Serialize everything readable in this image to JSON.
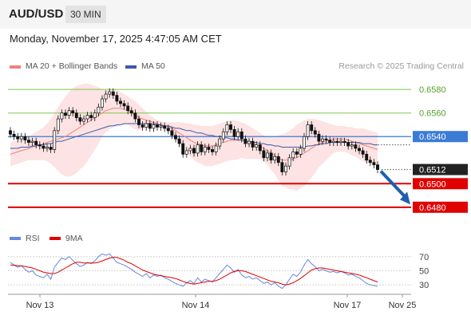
{
  "header": {
    "symbol": "AUD/USD",
    "timeframe": "30 MIN",
    "datetime": "Monday, November 17, 2025 4:47:05 AM CET"
  },
  "colors": {
    "ma20": "#f08080",
    "bollinger_fill": "#fde0e0",
    "ma50": "#3a5ca8",
    "candle": "#111111",
    "resistance": "#7ec850",
    "pivot": "#3a7bd5",
    "support": "#e00000",
    "last": "#222222",
    "rsi": "#6688dd",
    "rsi_ma": "#e00000",
    "arrow": "#1e5fb0"
  },
  "chart_data": [
    {
      "type": "line",
      "panel": "price",
      "legend": [
        {
          "name": "MA 20 + Bollinger Bands",
          "color": "#f08080"
        },
        {
          "name": "MA 50",
          "color": "#3a5ca8"
        }
      ],
      "credit": "Research © 2025 Trading Central",
      "x_ticks": [
        "Nov 13",
        "Nov 14",
        "Nov 17",
        "Nov 25"
      ],
      "y_range": [
        0.6465,
        0.6595
      ],
      "levels": [
        {
          "label": "0.6580",
          "value": 0.658,
          "kind": "resistance"
        },
        {
          "label": "0.6560",
          "value": 0.656,
          "kind": "resistance"
        },
        {
          "label": "0.6540",
          "value": 0.654,
          "kind": "pivot"
        },
        {
          "label": "0.6512",
          "value": 0.6512,
          "kind": "last"
        },
        {
          "label": "0.6500",
          "value": 0.65,
          "kind": "support"
        },
        {
          "label": "0.6480",
          "value": 0.648,
          "kind": "support"
        }
      ],
      "arrow": {
        "from": 0.6512,
        "to": 0.6481
      },
      "close": [
        0.6542,
        0.654,
        0.6538,
        0.654,
        0.6537,
        0.6535,
        0.6536,
        0.6533,
        0.6532,
        0.653,
        0.6531,
        0.6529,
        0.6545,
        0.6555,
        0.656,
        0.6558,
        0.6562,
        0.656,
        0.6556,
        0.6553,
        0.6555,
        0.6558,
        0.6556,
        0.656,
        0.6565,
        0.6572,
        0.6576,
        0.6578,
        0.6575,
        0.657,
        0.6568,
        0.6566,
        0.6562,
        0.656,
        0.6555,
        0.655,
        0.6548,
        0.6551,
        0.6547,
        0.655,
        0.6548,
        0.6549,
        0.6547,
        0.6545,
        0.6541,
        0.6538,
        0.6534,
        0.6525,
        0.6528,
        0.653,
        0.6526,
        0.6533,
        0.6527,
        0.6531,
        0.6529,
        0.6527,
        0.6532,
        0.6538,
        0.6544,
        0.655,
        0.6546,
        0.654,
        0.6544,
        0.6538,
        0.6534,
        0.6536,
        0.6531,
        0.6533,
        0.6528,
        0.6522,
        0.6526,
        0.652,
        0.6523,
        0.6518,
        0.651,
        0.6515,
        0.6522,
        0.6527,
        0.6525,
        0.653,
        0.654,
        0.655,
        0.6545,
        0.6542,
        0.6536,
        0.6538,
        0.6537,
        0.6535,
        0.6536,
        0.6535,
        0.6536,
        0.6535,
        0.6532,
        0.6533,
        0.653,
        0.6528,
        0.6525,
        0.652,
        0.6518,
        0.6516,
        0.6512
      ],
      "ma20": [
        0.6525,
        0.6526,
        0.6527,
        0.6528,
        0.6529,
        0.653,
        0.6531,
        0.6532,
        0.6533,
        0.6534,
        0.6535,
        0.6536,
        0.6537,
        0.6538,
        0.6539,
        0.654,
        0.6542,
        0.6544,
        0.6546,
        0.6548,
        0.655,
        0.6552,
        0.6554,
        0.6556,
        0.6558,
        0.656,
        0.6562,
        0.6563,
        0.6564,
        0.6564,
        0.6564,
        0.6563,
        0.6562,
        0.656,
        0.6558,
        0.6556,
        0.6555,
        0.6554,
        0.6553,
        0.6552,
        0.6551,
        0.655,
        0.6549,
        0.6548,
        0.6547,
        0.6545,
        0.6543,
        0.6541,
        0.6539,
        0.6537,
        0.6535,
        0.6534,
        0.6533,
        0.6532,
        0.6532,
        0.6532,
        0.6533,
        0.6534,
        0.6535,
        0.6536,
        0.6537,
        0.6537,
        0.6537,
        0.6537,
        0.6536,
        0.6535,
        0.6534,
        0.6533,
        0.6532,
        0.653,
        0.6528,
        0.6526,
        0.6524,
        0.6522,
        0.652,
        0.652,
        0.652,
        0.6521,
        0.6522,
        0.6524,
        0.6526,
        0.6528,
        0.653,
        0.6532,
        0.6534,
        0.6535,
        0.6536,
        0.6537,
        0.6538,
        0.6538,
        0.6538,
        0.6538,
        0.6537,
        0.6536,
        0.6535,
        0.6534,
        0.6533,
        0.6532,
        0.6531,
        0.653,
        0.6529
      ],
      "bb_upper": [
        0.6535,
        0.6536,
        0.6537,
        0.6538,
        0.6539,
        0.654,
        0.6542,
        0.6544,
        0.6546,
        0.6548,
        0.6551,
        0.6555,
        0.656,
        0.6565,
        0.657,
        0.6574,
        0.6578,
        0.6581,
        0.6583,
        0.6584,
        0.6585,
        0.6585,
        0.6584,
        0.6583,
        0.6582,
        0.658,
        0.658,
        0.658,
        0.658,
        0.658,
        0.6578,
        0.6576,
        0.6574,
        0.6572,
        0.657,
        0.6567,
        0.6564,
        0.6561,
        0.6558,
        0.6556,
        0.6554,
        0.6553,
        0.6552,
        0.6552,
        0.6552,
        0.6552,
        0.6552,
        0.6552,
        0.6551,
        0.6551,
        0.655,
        0.655,
        0.6549,
        0.6549,
        0.6549,
        0.6549,
        0.655,
        0.6551,
        0.6552,
        0.6553,
        0.6554,
        0.6554,
        0.6553,
        0.6552,
        0.6551,
        0.6549,
        0.6547,
        0.6545,
        0.6543,
        0.6541,
        0.654,
        0.654,
        0.654,
        0.6541,
        0.6542,
        0.6543,
        0.6545,
        0.6547,
        0.655,
        0.6552,
        0.6554,
        0.6555,
        0.6555,
        0.6555,
        0.6554,
        0.6553,
        0.6552,
        0.6551,
        0.655,
        0.6549,
        0.6549,
        0.6549,
        0.6548,
        0.6548,
        0.6547,
        0.6547,
        0.6547,
        0.6546,
        0.6545,
        0.6544,
        0.6543
      ],
      "bb_lower": [
        0.6515,
        0.6516,
        0.6517,
        0.6518,
        0.6519,
        0.652,
        0.652,
        0.652,
        0.652,
        0.652,
        0.6519,
        0.6517,
        0.6514,
        0.6511,
        0.6508,
        0.6506,
        0.6506,
        0.6507,
        0.6509,
        0.6512,
        0.6515,
        0.6519,
        0.6524,
        0.6529,
        0.6534,
        0.654,
        0.6544,
        0.6546,
        0.6548,
        0.6548,
        0.655,
        0.655,
        0.655,
        0.6548,
        0.6546,
        0.6545,
        0.6546,
        0.6547,
        0.6548,
        0.6548,
        0.6548,
        0.6547,
        0.6546,
        0.6544,
        0.6542,
        0.6538,
        0.6534,
        0.653,
        0.6527,
        0.6523,
        0.652,
        0.6518,
        0.6517,
        0.6515,
        0.6515,
        0.6515,
        0.6516,
        0.6517,
        0.6518,
        0.6519,
        0.652,
        0.652,
        0.6521,
        0.6522,
        0.6521,
        0.6521,
        0.6521,
        0.6521,
        0.6521,
        0.6519,
        0.6516,
        0.6512,
        0.6508,
        0.6503,
        0.6498,
        0.6497,
        0.6495,
        0.6495,
        0.6494,
        0.6496,
        0.6498,
        0.6501,
        0.6505,
        0.6509,
        0.6514,
        0.6517,
        0.652,
        0.6523,
        0.6526,
        0.6527,
        0.6527,
        0.6527,
        0.6526,
        0.6524,
        0.6523,
        0.6521,
        0.6519,
        0.6518,
        0.6517,
        0.6516,
        0.6515
      ],
      "ma50": [
        0.653,
        0.653,
        0.653,
        0.6531,
        0.6531,
        0.6531,
        0.6532,
        0.6532,
        0.6533,
        0.6533,
        0.6534,
        0.6534,
        0.6535,
        0.6536,
        0.6536,
        0.6537,
        0.6538,
        0.6539,
        0.654,
        0.6541,
        0.6542,
        0.6543,
        0.6544,
        0.6545,
        0.6546,
        0.6547,
        0.6548,
        0.6549,
        0.6549,
        0.655,
        0.655,
        0.6551,
        0.6551,
        0.6551,
        0.6551,
        0.6551,
        0.6551,
        0.6551,
        0.6551,
        0.6551,
        0.655,
        0.655,
        0.6549,
        0.6549,
        0.6548,
        0.6547,
        0.6547,
        0.6546,
        0.6545,
        0.6545,
        0.6544,
        0.6543,
        0.6543,
        0.6542,
        0.6541,
        0.6541,
        0.654,
        0.654,
        0.6539,
        0.6539,
        0.6538,
        0.6538,
        0.6537,
        0.6537,
        0.6536,
        0.6536,
        0.6535,
        0.6535,
        0.6534,
        0.6534,
        0.6533,
        0.6533,
        0.6532,
        0.6532,
        0.6531,
        0.6531,
        0.6531,
        0.6531,
        0.6531,
        0.6531,
        0.6531,
        0.6532,
        0.6532,
        0.6533,
        0.6533,
        0.6534,
        0.6534,
        0.6535,
        0.6535,
        0.6535,
        0.6535,
        0.6535,
        0.6535,
        0.6535,
        0.6535,
        0.6535,
        0.6534,
        0.6534,
        0.6534,
        0.6533,
        0.6533
      ]
    },
    {
      "type": "line",
      "panel": "rsi",
      "legend": [
        {
          "name": "RSI",
          "color": "#6688dd"
        },
        {
          "name": "9MA",
          "color": "#e00000"
        }
      ],
      "y_ticks": [
        70,
        50,
        30
      ],
      "y_range": [
        20,
        80
      ],
      "rsi": [
        62,
        58,
        55,
        57,
        52,
        48,
        50,
        44,
        42,
        40,
        45,
        38,
        55,
        62,
        68,
        66,
        70,
        65,
        60,
        56,
        58,
        62,
        60,
        64,
        70,
        74,
        72,
        74,
        68,
        62,
        60,
        58,
        55,
        52,
        48,
        45,
        42,
        46,
        40,
        44,
        42,
        44,
        40,
        38,
        35,
        32,
        30,
        28,
        33,
        36,
        32,
        40,
        34,
        38,
        36,
        34,
        40,
        46,
        52,
        58,
        54,
        48,
        52,
        44,
        40,
        42,
        38,
        40,
        36,
        32,
        34,
        30,
        33,
        28,
        25,
        30,
        38,
        45,
        42,
        48,
        58,
        66,
        60,
        56,
        50,
        52,
        50,
        48,
        49,
        47,
        49,
        47,
        44,
        45,
        42,
        40,
        36,
        32,
        30,
        29,
        28
      ],
      "rsi_ma": [
        58,
        58,
        57,
        57,
        56,
        55,
        54,
        52,
        50,
        48,
        47,
        46,
        46,
        48,
        51,
        54,
        57,
        60,
        62,
        62,
        61,
        61,
        61,
        61,
        62,
        64,
        66,
        68,
        69,
        69,
        67,
        65,
        62,
        60,
        57,
        54,
        51,
        49,
        47,
        45,
        44,
        43,
        42,
        41,
        40,
        39,
        37,
        35,
        33,
        32,
        31,
        32,
        33,
        34,
        35,
        35,
        36,
        38,
        41,
        44,
        47,
        49,
        50,
        50,
        49,
        47,
        45,
        43,
        41,
        39,
        37,
        35,
        34,
        33,
        31,
        30,
        31,
        33,
        36,
        39,
        43,
        47,
        51,
        53,
        54,
        54,
        53,
        52,
        51,
        50,
        49,
        48,
        47,
        46,
        45,
        44,
        42,
        40,
        38,
        36,
        34
      ]
    }
  ]
}
